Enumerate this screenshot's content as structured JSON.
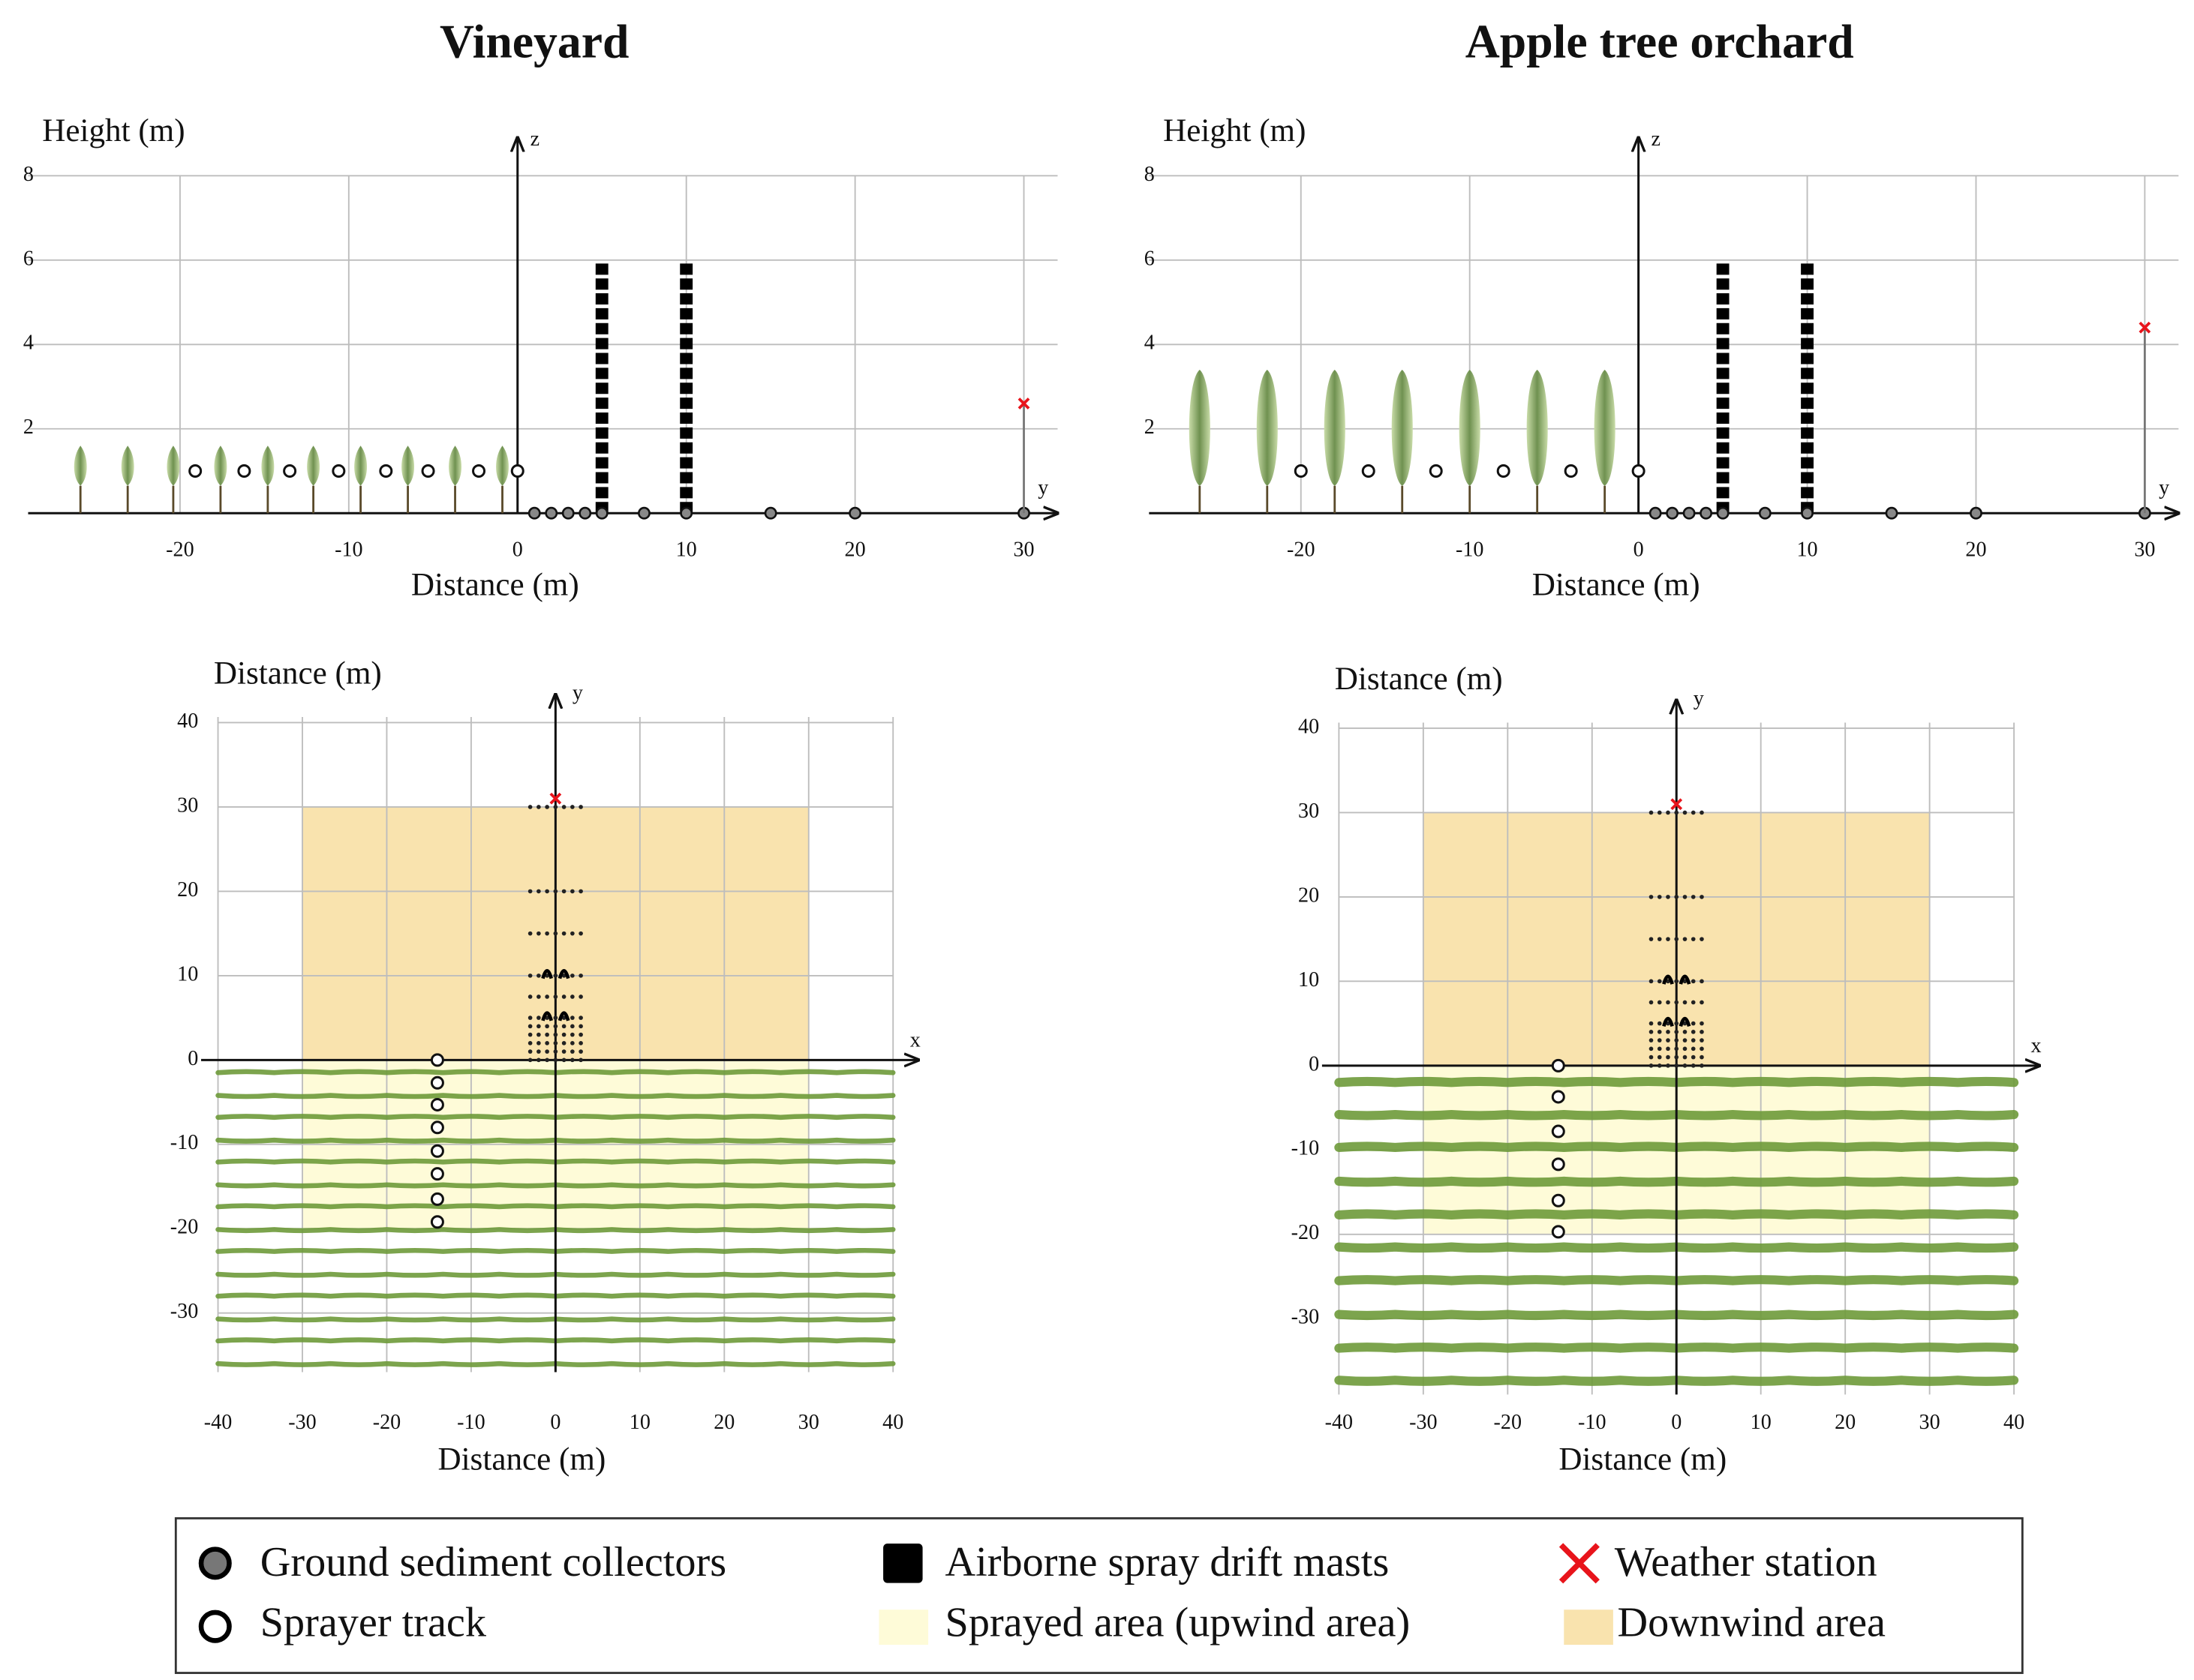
{
  "panels": [
    {
      "title": "Vineyard",
      "side": {
        "ylabel": "Height (m)",
        "xlabel": "Distance (m)",
        "vertical_axis": "z",
        "horizontal_axis": "y",
        "xlim": [
          -29,
          32
        ],
        "ylim": [
          0,
          8
        ],
        "xticks": [
          -20,
          -10,
          0,
          10,
          20,
          30
        ],
        "yticks": [
          2,
          4,
          6,
          8
        ],
        "plant_rows": [
          -25.9,
          -23.1,
          -20.4,
          -17.6,
          -14.8,
          -12.1,
          -9.3,
          -6.5,
          -3.7,
          -0.9
        ],
        "plant_height": 1.6,
        "sprayer_track": [
          -19.1,
          -16.2,
          -13.5,
          -10.6,
          -7.8,
          -5.3,
          -2.3,
          0
        ],
        "sprayer_height": 1,
        "collectors": [
          1,
          2,
          3,
          4,
          5,
          7.5,
          10,
          15,
          20,
          30
        ],
        "masts": [
          5,
          10
        ],
        "mast_height": 6,
        "weather_station": [
          30,
          2.6
        ]
      },
      "plan": {
        "ylabel": "Distance (m)",
        "xlabel": "Distance (m)",
        "vertical_axis": "y",
        "horizontal_axis": "x",
        "xlim": [
          -40,
          40
        ],
        "ylim": [
          -37,
          40
        ],
        "xticks": [
          -40,
          -30,
          -20,
          -10,
          0,
          10,
          20,
          30,
          40
        ],
        "yticks": [
          -30,
          -20,
          -10,
          0,
          10,
          20,
          30,
          40
        ],
        "downwind_area": {
          "x": [
            -30,
            30
          ],
          "y": [
            0,
            30
          ]
        },
        "sprayed_area": {
          "x": [
            -30,
            30
          ],
          "y": [
            -20,
            0
          ]
        },
        "plant_rows": [
          -1.5,
          -4.2,
          -6.8,
          -9.5,
          -12.1,
          -14.8,
          -17.4,
          -20.1,
          -22.7,
          -25.4,
          -28,
          -30.7,
          -33.3,
          -36
        ],
        "sprayer_x": -14,
        "sprayer_track": [
          0,
          -2.7,
          -5.3,
          -8,
          -10.8,
          -13.5,
          -16.5,
          -19.2
        ],
        "collector_rows": [
          0,
          1,
          2,
          3,
          4,
          5,
          7.5,
          10,
          15,
          20,
          30
        ],
        "masts": [
          [
            -1,
            5
          ],
          [
            1,
            5
          ],
          [
            -1,
            10
          ],
          [
            1,
            10
          ]
        ],
        "weather_station": [
          0,
          31
        ]
      }
    },
    {
      "title": "Apple tree orchard",
      "side": {
        "ylabel": "Height (m)",
        "xlabel": "Distance (m)",
        "vertical_axis": "z",
        "horizontal_axis": "y",
        "xlim": [
          -29,
          32
        ],
        "ylim": [
          0,
          8
        ],
        "xticks": [
          -20,
          -10,
          0,
          10,
          20,
          30
        ],
        "yticks": [
          2,
          4,
          6,
          8
        ],
        "plant_rows": [
          -26,
          -22,
          -18,
          -14,
          -10,
          -6,
          -2
        ],
        "plant_height": 3.4,
        "sprayer_track": [
          -20,
          -16,
          -12,
          -8,
          -4,
          0
        ],
        "sprayer_height": 1,
        "collectors": [
          1,
          2,
          3,
          4,
          5,
          7.5,
          10,
          15,
          20,
          30
        ],
        "masts": [
          5,
          10
        ],
        "mast_height": 6,
        "weather_station": [
          30,
          4.4
        ]
      },
      "plan": {
        "ylabel": "Distance (m)",
        "xlabel": "Distance (m)",
        "vertical_axis": "y",
        "horizontal_axis": "x",
        "xlim": [
          -40,
          40
        ],
        "ylim": [
          -39,
          40
        ],
        "xticks": [
          -40,
          -30,
          -20,
          -10,
          0,
          10,
          20,
          30,
          40
        ],
        "yticks": [
          -30,
          -20,
          -10,
          0,
          10,
          20,
          30,
          40
        ],
        "downwind_area": {
          "x": [
            -30,
            30
          ],
          "y": [
            0,
            30
          ]
        },
        "sprayed_area": {
          "x": [
            -30,
            30
          ],
          "y": [
            -20,
            0
          ]
        },
        "plant_rows": [
          -2,
          -5.8,
          -9.7,
          -13.7,
          -17.7,
          -21.5,
          -25.5,
          -29.5,
          -33.5,
          -37.3
        ],
        "sprayer_x": -14,
        "sprayer_track": [
          0,
          -3.7,
          -7.8,
          -11.7,
          -16,
          -19.7
        ],
        "collector_rows": [
          0,
          1,
          2,
          3,
          4,
          5,
          7.5,
          10,
          15,
          20,
          30
        ],
        "masts": [
          [
            -1,
            5
          ],
          [
            1,
            5
          ],
          [
            -1,
            10
          ],
          [
            1,
            10
          ]
        ],
        "weather_station": [
          0,
          31
        ]
      }
    }
  ],
  "legend": {
    "collectors": "Ground sediment collectors",
    "sprayer": "Sprayer track",
    "masts": "Airborne spray drift masts",
    "sprayed": "Sprayed  area (upwind area)",
    "weather": "Weather station",
    "downwind": "Downwind area"
  }
}
